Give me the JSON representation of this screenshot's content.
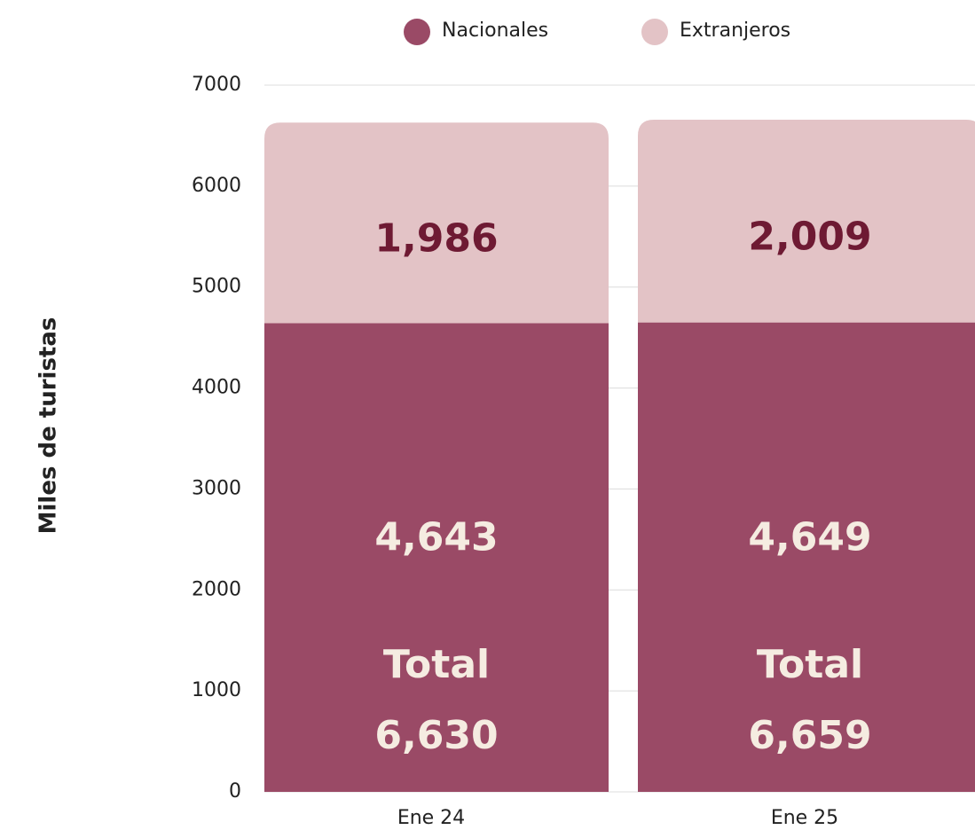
{
  "chart_data": {
    "type": "stacked_bar",
    "ylabel": "Miles de turistas",
    "categories": [
      "Ene 24",
      "Ene 25"
    ],
    "series": [
      {
        "name": "Nacionales",
        "color": "#9a4a66",
        "label_color": "#f5ece1",
        "values": [
          4643,
          4649
        ],
        "value_labels": [
          "4,643",
          "4,649"
        ]
      },
      {
        "name": "Extranjeros",
        "color": "#e3c3c6",
        "label_color": "#6e1a33",
        "values": [
          1986,
          2009
        ],
        "value_labels": [
          "1,986",
          "2,009"
        ]
      }
    ],
    "total_label": "Total",
    "totals": [
      6630,
      6659
    ],
    "total_labels": [
      "6,630",
      "6,659"
    ],
    "ylim": [
      0,
      7000
    ],
    "yticks": [
      0,
      1000,
      2000,
      3000,
      4000,
      5000,
      6000,
      7000
    ],
    "grid": true
  }
}
